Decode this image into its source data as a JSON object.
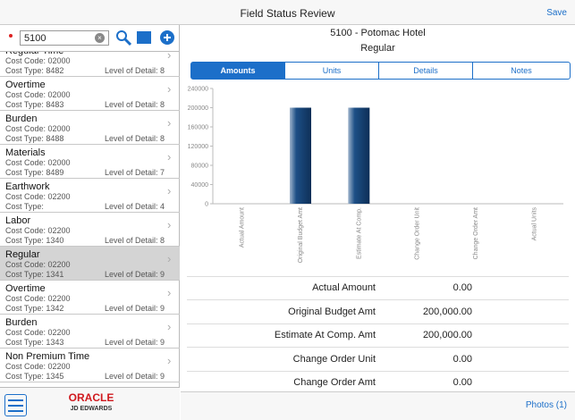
{
  "header": {
    "title": "Field Status Review",
    "save": "Save"
  },
  "search": {
    "value": "5100"
  },
  "list": [
    {
      "title": "Regular Time",
      "code": "Cost Code: 02000",
      "type": "Cost Type: 8482",
      "level": "Level of Detail: 8"
    },
    {
      "title": "Overtime",
      "code": "Cost Code: 02000",
      "type": "Cost Type: 8483",
      "level": "Level of Detail: 8"
    },
    {
      "title": "Burden",
      "code": "Cost Code: 02000",
      "type": "Cost Type: 8488",
      "level": "Level of Detail: 8"
    },
    {
      "title": "Materials",
      "code": "Cost Code: 02000",
      "type": "Cost Type: 8489",
      "level": "Level of Detail: 7"
    },
    {
      "title": "Earthwork",
      "code": "Cost Code: 02200",
      "type": "Cost Type:",
      "level": "Level of Detail: 4"
    },
    {
      "title": "Labor",
      "code": "Cost Code: 02200",
      "type": "Cost Type: 1340",
      "level": "Level of Detail: 8"
    },
    {
      "title": "Regular",
      "code": "Cost Code: 02200",
      "type": "Cost Type: 1341",
      "level": "Level of Detail: 9"
    },
    {
      "title": "Overtime",
      "code": "Cost Code: 02200",
      "type": "Cost Type: 1342",
      "level": "Level of Detail: 9"
    },
    {
      "title": "Burden",
      "code": "Cost Code: 02200",
      "type": "Cost Type: 1343",
      "level": "Level of Detail: 9"
    },
    {
      "title": "Non Premium Time",
      "code": "Cost Code: 02200",
      "type": "Cost Type: 1345",
      "level": "Level of Detail: 9"
    }
  ],
  "logo": {
    "brand": "ORACLE",
    "product": "JD EDWARDS"
  },
  "detail": {
    "title": "5100 - Potomac Hotel",
    "subtitle": "Regular"
  },
  "tabs": [
    "Amounts",
    "Units",
    "Details",
    "Notes"
  ],
  "chart_data": {
    "type": "bar",
    "categories": [
      "Actual Amount",
      "Original Budget Amt",
      "Estimate At Comp.",
      "Change Order Unit",
      "Change Order Amt",
      "Actual Units"
    ],
    "values": [
      0,
      200000,
      200000,
      0,
      0,
      0
    ],
    "color": "#1d4f86",
    "ylim": [
      0,
      240000
    ],
    "yticks": [
      0,
      40000,
      80000,
      120000,
      160000,
      200000,
      240000
    ]
  },
  "table": [
    [
      "Actual Amount",
      "0.00"
    ],
    [
      "Original Budget Amt",
      "200,000.00"
    ],
    [
      "Estimate At Comp. Amt",
      "200,000.00"
    ],
    [
      "Change Order Unit",
      "0.00"
    ],
    [
      "Change Order Amt",
      "0.00"
    ]
  ],
  "footer": {
    "photos": "Photos (1)"
  }
}
